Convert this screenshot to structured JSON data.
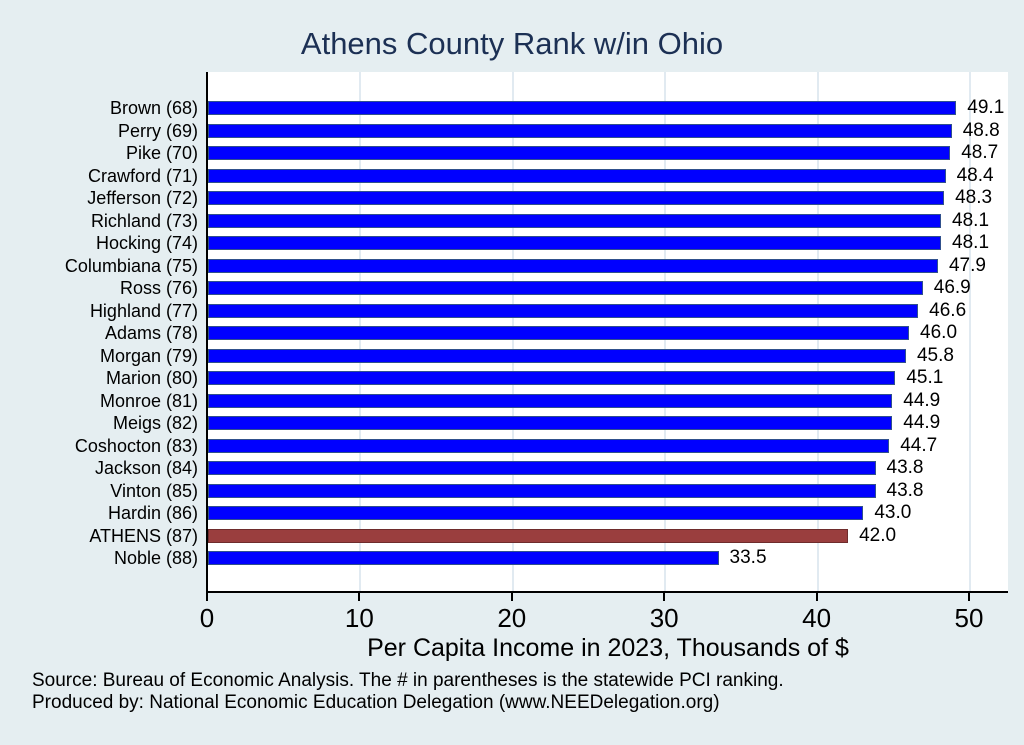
{
  "chart_data": {
    "type": "bar",
    "orientation": "horizontal",
    "title": "Athens County Rank w/in Ohio",
    "xlabel": "Per Capita Income in 2023, Thousands of $",
    "xlim": [
      0,
      52.5
    ],
    "xticks": [
      0,
      10,
      20,
      30,
      40,
      50
    ],
    "grid": "vertical-gridlines-on",
    "legend": "none",
    "categories": [
      "Brown (68)",
      "Perry (69)",
      "Pike (70)",
      "Crawford (71)",
      "Jefferson (72)",
      "Richland (73)",
      "Hocking (74)",
      "Columbiana (75)",
      "Ross (76)",
      "Highland (77)",
      "Adams (78)",
      "Morgan (79)",
      "Marion (80)",
      "Monroe (81)",
      "Meigs (82)",
      "Coshocton (83)",
      "Jackson (84)",
      "Vinton (85)",
      "Hardin (86)",
      "ATHENS (87)",
      "Noble (88)"
    ],
    "values": [
      49.1,
      48.8,
      48.7,
      48.4,
      48.3,
      48.1,
      48.1,
      47.9,
      46.9,
      46.6,
      46.0,
      45.8,
      45.1,
      44.9,
      44.9,
      44.7,
      43.8,
      43.8,
      43.0,
      42.0,
      33.5
    ],
    "highlight_category": "ATHENS (87)",
    "bar_color": "#0000ff",
    "highlight_color": "#9a3e3e",
    "title_color": "#1c3054",
    "background_color": "#e5eef1",
    "plot_background_color": "#ffffff"
  },
  "footer": {
    "line1": "Source: Bureau of Economic Analysis. The # in parentheses is the statewide PCI ranking.",
    "line2": "Produced by: National Economic Education Delegation (www.NEEDelegation.org)"
  }
}
